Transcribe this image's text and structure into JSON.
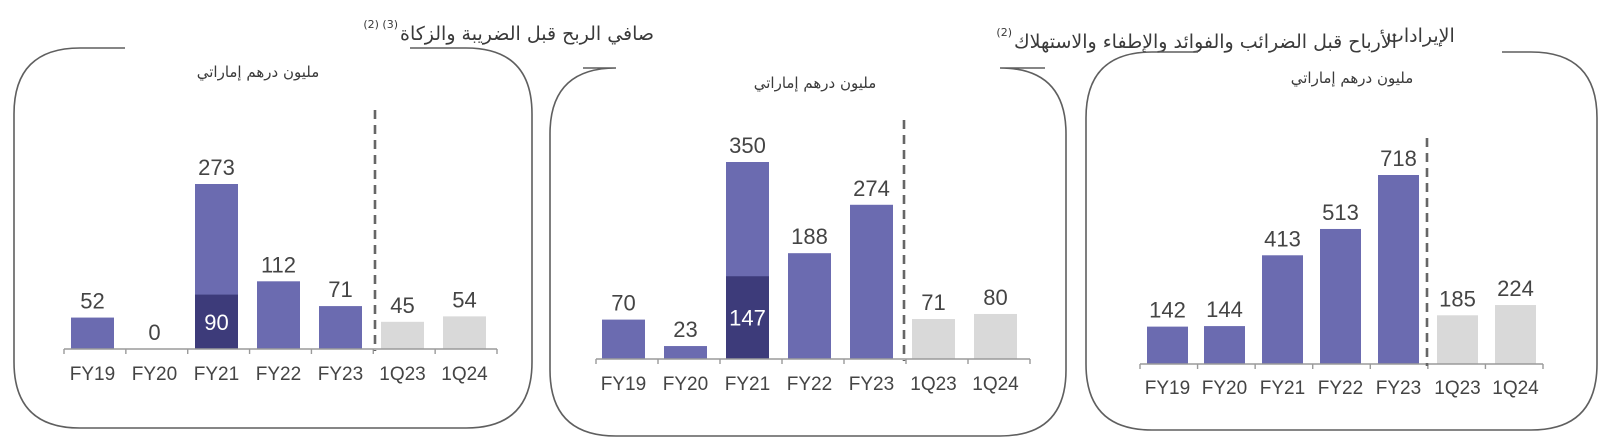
{
  "colors": {
    "main": "#6b6bb0",
    "dark": "#3d3b7a",
    "quarter": "#d9d9d9",
    "frame": "#5f5f5f",
    "text": "#444444"
  },
  "chart_data": [
    {
      "type": "bar",
      "title": "صافي الربح قبل الضريبة والزكاة",
      "title_superscript": "(2) (3)",
      "subtitle": "مليون درهم إماراتي",
      "categories": [
        "FY19",
        "FY20",
        "FY21",
        "FY22",
        "FY23",
        "1Q23",
        "1Q24"
      ],
      "values": [
        52,
        0,
        273,
        112,
        71,
        45,
        54
      ],
      "inner_labels": [
        null,
        null,
        90,
        null,
        null,
        null,
        null
      ],
      "ylim": [
        0,
        273
      ]
    },
    {
      "type": "bar",
      "title": "الأرباح قبل الضرائب والفوائد والإطفاء والاستهلاك",
      "title_superscript": "(2)",
      "subtitle": "مليون درهم إماراتي",
      "categories": [
        "FY19",
        "FY20",
        "FY21",
        "FY22",
        "FY23",
        "1Q23",
        "1Q24"
      ],
      "values": [
        70,
        23,
        350,
        188,
        274,
        71,
        80
      ],
      "inner_labels": [
        null,
        null,
        147,
        null,
        null,
        null,
        null
      ],
      "ylim": [
        0,
        350
      ]
    },
    {
      "type": "bar",
      "title": "الإيرادات",
      "title_superscript": "",
      "subtitle": "مليون درهم إماراتي",
      "categories": [
        "FY19",
        "FY20",
        "FY21",
        "FY22",
        "FY23",
        "1Q23",
        "1Q24"
      ],
      "values": [
        142,
        144,
        413,
        513,
        718,
        185,
        224
      ],
      "inner_labels": [
        null,
        null,
        null,
        null,
        null,
        null,
        null
      ],
      "ylim": [
        0,
        718
      ]
    }
  ]
}
